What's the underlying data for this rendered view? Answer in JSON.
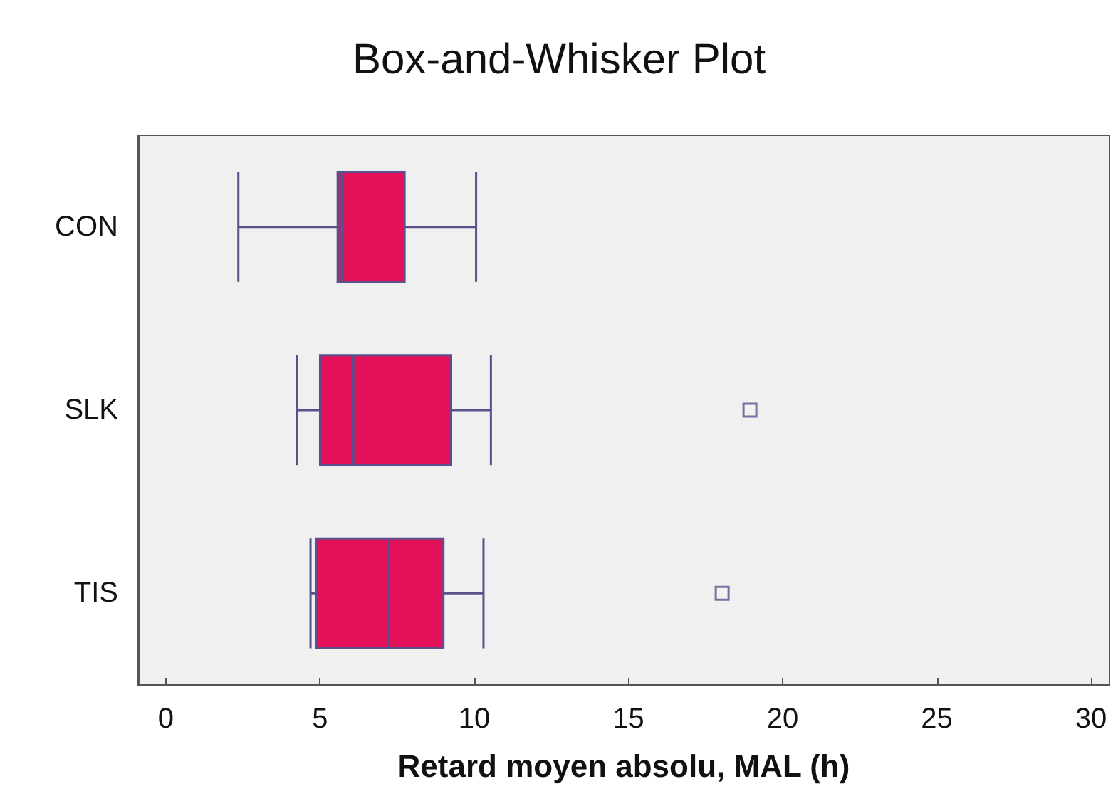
{
  "chart_data": {
    "type": "box",
    "title": "Box-and-Whisker Plot",
    "xlabel": "Retard moyen absolu, MAL (h)",
    "orientation": "horizontal",
    "categories": [
      "CON",
      "SLK",
      "TIS"
    ],
    "color": "#e3105a",
    "marker": "square",
    "grid": false,
    "boxes": [
      {
        "low": 2.35,
        "q1": 5.57,
        "median": 5.7,
        "q3": 7.74,
        "high": 10.06
      },
      {
        "low": 4.26,
        "q1": 5.0,
        "median": 6.08,
        "q3": 9.25,
        "high": 10.54,
        "outliers": [
          18.94
        ]
      },
      {
        "low": 4.69,
        "q1": 4.87,
        "median": 7.23,
        "q3": 9.0,
        "high": 10.3,
        "outliers": [
          18.04
        ]
      }
    ],
    "xlim": [
      -0.9,
      30.6
    ],
    "xticks": [
      0,
      5,
      10,
      15,
      20,
      25,
      30
    ]
  }
}
